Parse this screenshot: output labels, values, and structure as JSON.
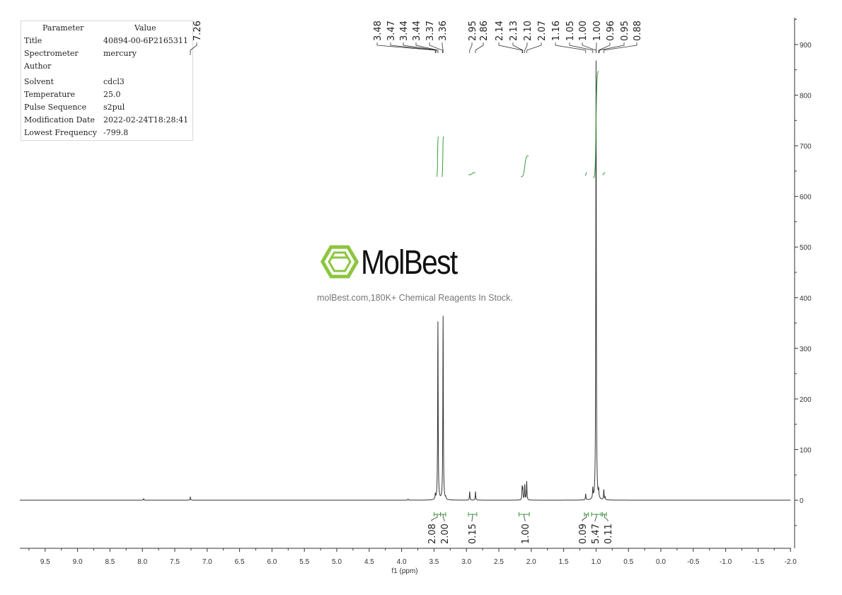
{
  "parameters": {
    "header": {
      "parameter": "Parameter",
      "value": "Value"
    },
    "rows": [
      {
        "name": "Title",
        "value": "40894-00-6P2165311"
      },
      {
        "name": "Spectrometer",
        "value": "mercury"
      },
      {
        "name": "Author",
        "value": ""
      },
      {
        "name": "Solvent",
        "value": "cdcl3"
      },
      {
        "name": "Temperature",
        "value": "25.0"
      },
      {
        "name": "Pulse Sequence",
        "value": "s2pul"
      },
      {
        "name": "Modification Date",
        "value": "2022-02-24T18:28:41"
      },
      {
        "name": "Lowest Frequency",
        "value": "-799.8"
      }
    ]
  },
  "watermark": {
    "logo_text": "MolBest",
    "tagline": "molBest.com,180K+ Chemical Reagents In Stock.",
    "logo_color": "#8cc63f"
  },
  "chart_data": {
    "type": "line",
    "title": "",
    "xlabel": "f1 (ppm)",
    "ylabel": "",
    "xlim": [
      9.9,
      -2.0
    ],
    "ylim": [
      -95,
      960
    ],
    "x_reversed": true,
    "x_ticks": [
      "9.5",
      "9.0",
      "8.5",
      "8.0",
      "7.5",
      "7.0",
      "6.5",
      "6.0",
      "5.5",
      "5.0",
      "4.5",
      "4.0",
      "3.5",
      "3.0",
      "2.5",
      "2.0",
      "1.5",
      "1.0",
      "0.5",
      "0.0",
      "-0.5",
      "-1.0",
      "-1.5",
      "-2.0"
    ],
    "y_ticks": [
      "0",
      "100",
      "200",
      "300",
      "400",
      "500",
      "600",
      "700",
      "800",
      "900"
    ],
    "grid": false,
    "line_color": "#333333",
    "integral_color": "#3a9a3a",
    "peaks": [
      {
        "ppm": 7.98,
        "height": 3
      },
      {
        "ppm": 7.26,
        "height": 6
      },
      {
        "ppm": 3.9,
        "height": 2
      },
      {
        "ppm": 3.48,
        "height": 10
      },
      {
        "ppm": 3.44,
        "height": 352
      },
      {
        "ppm": 3.36,
        "height": 363
      },
      {
        "ppm": 3.32,
        "height": 4
      },
      {
        "ppm": 2.95,
        "height": 17
      },
      {
        "ppm": 2.86,
        "height": 17
      },
      {
        "ppm": 2.14,
        "height": 25
      },
      {
        "ppm": 2.13,
        "height": 22
      },
      {
        "ppm": 2.1,
        "height": 30
      },
      {
        "ppm": 2.07,
        "height": 37
      },
      {
        "ppm": 1.16,
        "height": 12
      },
      {
        "ppm": 1.05,
        "height": 20
      },
      {
        "ppm": 1.0,
        "height": 868
      },
      {
        "ppm": 0.96,
        "height": 15
      },
      {
        "ppm": 0.88,
        "height": 20
      },
      {
        "ppm": 0.86,
        "height": 5
      }
    ],
    "peak_labels": {
      "solvent": [
        "7.26"
      ],
      "groups": [
        [
          "3.48",
          "3.47",
          "3.44",
          "3.44",
          "3.37",
          "3.36"
        ],
        [
          "2.95",
          "2.86"
        ],
        [
          "2.14",
          "2.13",
          "2.10",
          "2.07"
        ],
        [
          "1.16",
          "1.05",
          "1.00",
          "1.00",
          "0.96",
          "0.95",
          "0.88"
        ]
      ]
    },
    "integrals": [
      {
        "value": "2.08",
        "from": 3.5,
        "to": 3.4
      },
      {
        "value": "2.00",
        "from": 3.4,
        "to": 3.32
      },
      {
        "value": "0.15",
        "from": 2.97,
        "to": 2.84
      },
      {
        "value": "1.00",
        "from": 2.19,
        "to": 2.03
      },
      {
        "value": "0.09",
        "from": 1.18,
        "to": 1.12
      },
      {
        "value": "5.47",
        "from": 1.07,
        "to": 0.92
      },
      {
        "value": "0.11",
        "from": 0.9,
        "to": 0.84
      }
    ]
  }
}
